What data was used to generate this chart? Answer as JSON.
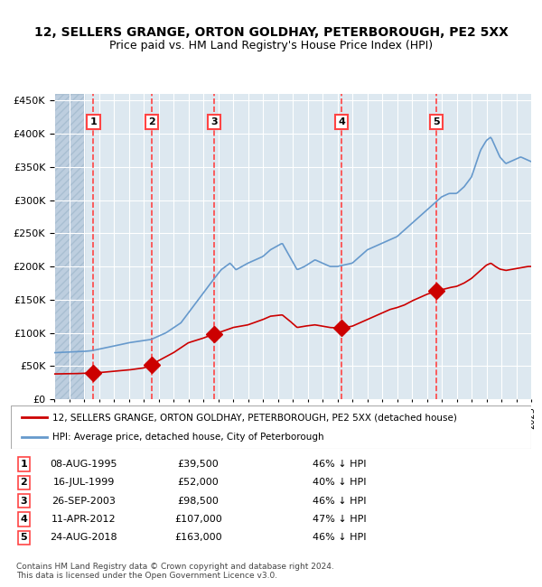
{
  "title": "12, SELLERS GRANGE, ORTON GOLDHAY, PETERBOROUGH, PE2 5XX",
  "subtitle": "Price paid vs. HM Land Registry's House Price Index (HPI)",
  "transactions": [
    {
      "date": "1995-08-08",
      "price": 39500,
      "label": "1"
    },
    {
      "date": "1999-07-16",
      "price": 52000,
      "label": "2"
    },
    {
      "date": "2003-09-26",
      "price": 98500,
      "label": "3"
    },
    {
      "date": "2012-04-11",
      "price": 107000,
      "label": "4"
    },
    {
      "date": "2018-08-24",
      "price": 163000,
      "label": "5"
    }
  ],
  "table_rows": [
    {
      "num": "1",
      "date": "08-AUG-1995",
      "price": "£39,500",
      "hpi": "46% ↓ HPI"
    },
    {
      "num": "2",
      "date": "16-JUL-1999",
      "price": "£52,000",
      "hpi": "40% ↓ HPI"
    },
    {
      "num": "3",
      "date": "26-SEP-2003",
      "price": "£98,500",
      "hpi": "46% ↓ HPI"
    },
    {
      "num": "4",
      "date": "11-APR-2012",
      "price": "£107,000",
      "hpi": "47% ↓ HPI"
    },
    {
      "num": "5",
      "date": "24-AUG-2018",
      "price": "£163,000",
      "hpi": "46% ↓ HPI"
    }
  ],
  "legend_line1": "12, SELLERS GRANGE, ORTON GOLDHAY, PETERBOROUGH, PE2 5XX (detached house)",
  "legend_line2": "HPI: Average price, detached house, City of Peterborough",
  "footer": "Contains HM Land Registry data © Crown copyright and database right 2024.\nThis data is licensed under the Open Government Licence v3.0.",
  "red_color": "#cc0000",
  "blue_color": "#6699cc",
  "background_color": "#dde8f0",
  "hatch_color": "#b0c4d8",
  "grid_color": "#ffffff",
  "dashed_color": "#ff4444",
  "ylim": [
    0,
    460000
  ],
  "yticks": [
    0,
    50000,
    100000,
    150000,
    200000,
    250000,
    300000,
    350000,
    400000,
    450000
  ],
  "x_start_year": 1993,
  "x_end_year": 2025
}
